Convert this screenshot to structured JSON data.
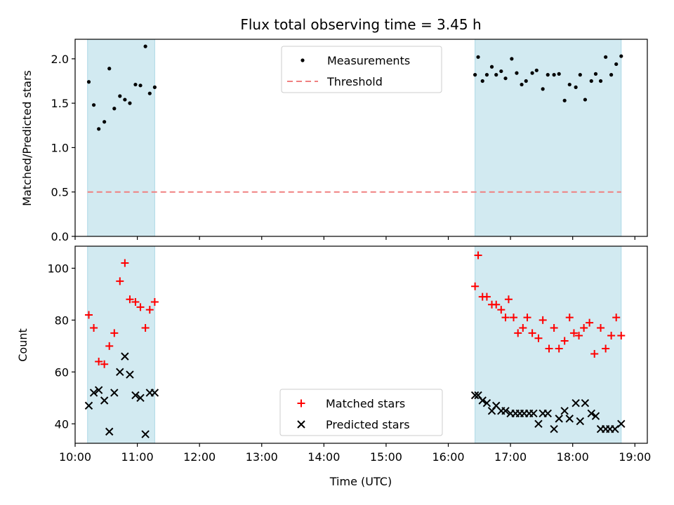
{
  "chart_data": [
    {
      "type": "scatter",
      "title": "Flux total observing time = 3.45 h",
      "xlabel": "",
      "ylabel": "Matched/Predicted stars",
      "xlim": [
        10.0,
        19.2
      ],
      "ylim": [
        0.0,
        2.22
      ],
      "yticks": [
        0.0,
        0.5,
        1.0,
        1.5,
        2.0
      ],
      "ytick_labels": [
        "0.0",
        "0.5",
        "1.0",
        "1.5",
        "2.0"
      ],
      "shaded_intervals": [
        [
          10.2,
          11.28
        ],
        [
          16.43,
          18.78
        ]
      ],
      "shade_color": "#add8e6",
      "legend_position": "upper-center",
      "series": [
        {
          "name": "Measurements",
          "marker": "dot",
          "color": "#000000",
          "x": [
            10.22,
            10.3,
            10.38,
            10.47,
            10.55,
            10.63,
            10.72,
            10.8,
            10.88,
            10.97,
            11.05,
            11.13,
            11.2,
            11.28,
            16.43,
            16.48,
            16.55,
            16.62,
            16.7,
            16.77,
            16.85,
            16.92,
            17.02,
            17.1,
            17.18,
            17.25,
            17.35,
            17.42,
            17.52,
            17.6,
            17.7,
            17.78,
            17.87,
            17.95,
            18.05,
            18.12,
            18.2,
            18.3,
            18.37,
            18.45,
            18.53,
            18.62,
            18.7,
            18.78
          ],
          "y": [
            1.74,
            1.48,
            1.21,
            1.29,
            1.89,
            1.44,
            1.58,
            1.54,
            1.5,
            1.71,
            1.7,
            2.14,
            1.61,
            1.68,
            1.82,
            2.02,
            1.75,
            1.82,
            1.91,
            1.82,
            1.86,
            1.78,
            2.0,
            1.84,
            1.71,
            1.75,
            1.84,
            1.87,
            1.66,
            1.82,
            1.82,
            1.83,
            1.53,
            1.71,
            1.68,
            1.82,
            1.54,
            1.75,
            1.83,
            1.75,
            2.02,
            1.82,
            1.94,
            2.03
          ]
        },
        {
          "name": "Threshold",
          "marker": "dashed-line",
          "color": "#f08080",
          "x": [
            10.2,
            18.78
          ],
          "y": [
            0.5,
            0.5
          ]
        }
      ]
    },
    {
      "type": "scatter",
      "title": "",
      "xlabel": "Time (UTC)",
      "ylabel": "Count",
      "xlim": [
        10.0,
        19.2
      ],
      "ylim": [
        32.5,
        108.5
      ],
      "xticks": [
        10,
        11,
        12,
        13,
        14,
        15,
        16,
        17,
        18,
        19
      ],
      "xtick_labels": [
        "10:00",
        "11:00",
        "12:00",
        "13:00",
        "14:00",
        "15:00",
        "16:00",
        "17:00",
        "18:00",
        "19:00"
      ],
      "yticks": [
        40,
        60,
        80,
        100
      ],
      "ytick_labels": [
        "40",
        "60",
        "80",
        "100"
      ],
      "shaded_intervals": [
        [
          10.2,
          11.28
        ],
        [
          16.43,
          18.78
        ]
      ],
      "shade_color": "#add8e6",
      "legend_position": "lower-center",
      "series": [
        {
          "name": "Matched stars",
          "marker": "plus",
          "color": "#ff0000",
          "x": [
            10.22,
            10.3,
            10.38,
            10.47,
            10.55,
            10.63,
            10.72,
            10.8,
            10.88,
            10.97,
            11.05,
            11.13,
            11.2,
            11.28,
            16.43,
            16.48,
            16.55,
            16.62,
            16.7,
            16.77,
            16.85,
            16.92,
            16.97,
            17.05,
            17.12,
            17.2,
            17.27,
            17.35,
            17.45,
            17.52,
            17.62,
            17.7,
            17.78,
            17.87,
            17.95,
            18.02,
            18.1,
            18.18,
            18.27,
            18.35,
            18.45,
            18.53,
            18.62,
            18.7,
            18.78
          ],
          "y": [
            82,
            77,
            64,
            63,
            70,
            75,
            95,
            102,
            88,
            87,
            85,
            77,
            84,
            87,
            93,
            105,
            89,
            89,
            86,
            86,
            84,
            81,
            88,
            81,
            75,
            77,
            81,
            75,
            73,
            80,
            69,
            77,
            69,
            72,
            81,
            75,
            74,
            77,
            79,
            67,
            77,
            69,
            74,
            81,
            74
          ],
          "note": "approximate"
        },
        {
          "name": "Predicted stars",
          "marker": "x",
          "color": "#000000",
          "x": [
            10.22,
            10.3,
            10.38,
            10.47,
            10.55,
            10.63,
            10.72,
            10.8,
            10.88,
            10.97,
            11.05,
            11.13,
            11.2,
            11.28,
            16.43,
            16.48,
            16.55,
            16.62,
            16.7,
            16.77,
            16.85,
            16.92,
            17.0,
            17.08,
            17.15,
            17.22,
            17.3,
            17.37,
            17.45,
            17.52,
            17.6,
            17.7,
            17.78,
            17.87,
            17.95,
            18.05,
            18.12,
            18.2,
            18.3,
            18.37,
            18.45,
            18.53,
            18.6,
            18.68,
            18.78
          ],
          "y": [
            47,
            52,
            53,
            49,
            37,
            52,
            60,
            66,
            59,
            51,
            50,
            36,
            52,
            52,
            51,
            51,
            49,
            48,
            45,
            47,
            45,
            45,
            44,
            44,
            44,
            44,
            44,
            44,
            40,
            44,
            44,
            38,
            42,
            45,
            42,
            48,
            41,
            48,
            44,
            43,
            38,
            38,
            38,
            38,
            40
          ]
        }
      ]
    }
  ]
}
